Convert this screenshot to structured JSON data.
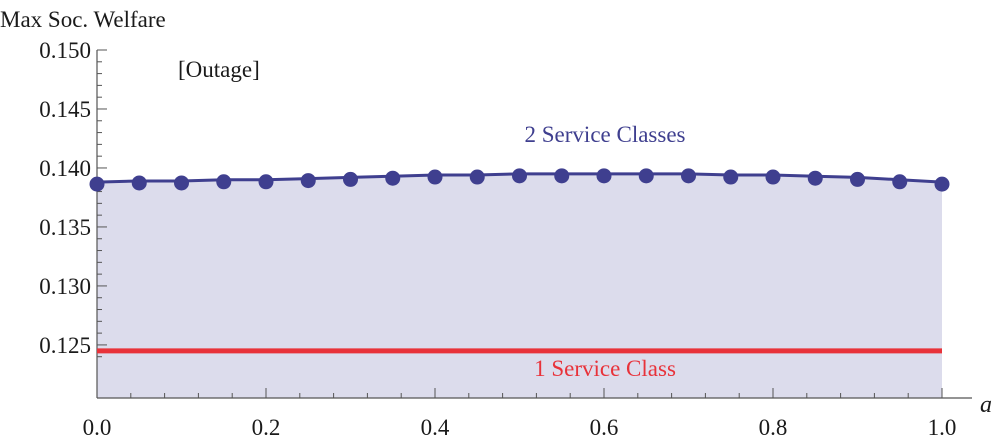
{
  "chart_data": {
    "type": "line",
    "title": "",
    "xlabel": "a",
    "ylabel": "Max Soc. Welfare",
    "xlim": [
      0.0,
      1.0
    ],
    "ylim": [
      0.1205,
      0.15
    ],
    "x_ticks": [
      0.0,
      0.2,
      0.4,
      0.6,
      0.8,
      1.0
    ],
    "x_tick_labels": [
      "0.0",
      "0.2",
      "0.4",
      "0.6",
      "0.8",
      "1.0"
    ],
    "y_ticks": [
      0.125,
      0.13,
      0.135,
      0.14,
      0.145,
      0.15
    ],
    "y_tick_labels": [
      "0.125",
      "0.130",
      "0.135",
      "0.140",
      "0.145",
      "0.150"
    ],
    "grid": false,
    "annotations": [
      "[Outage]"
    ],
    "colors": {
      "two_class": "#3f3f8f",
      "one_class": "#e8323a",
      "fill": "#dcdcec"
    },
    "series": [
      {
        "name": "2 Service Classes",
        "style": "line-with-markers",
        "x": [
          0.0,
          0.05,
          0.1,
          0.15,
          0.2,
          0.25,
          0.3,
          0.35,
          0.4,
          0.45,
          0.5,
          0.55,
          0.6,
          0.65,
          0.7,
          0.75,
          0.8,
          0.85,
          0.9,
          0.95,
          1.0
        ],
        "y": [
          0.1388,
          0.1389,
          0.1389,
          0.139,
          0.139,
          0.1391,
          0.1392,
          0.1393,
          0.1394,
          0.1394,
          0.1395,
          0.1395,
          0.1395,
          0.1395,
          0.1395,
          0.1394,
          0.1394,
          0.1393,
          0.1392,
          0.139,
          0.1388
        ]
      },
      {
        "name": "1 Service Class",
        "style": "line",
        "x": [
          0.0,
          1.0
        ],
        "y": [
          0.1245,
          0.1245
        ]
      }
    ]
  }
}
